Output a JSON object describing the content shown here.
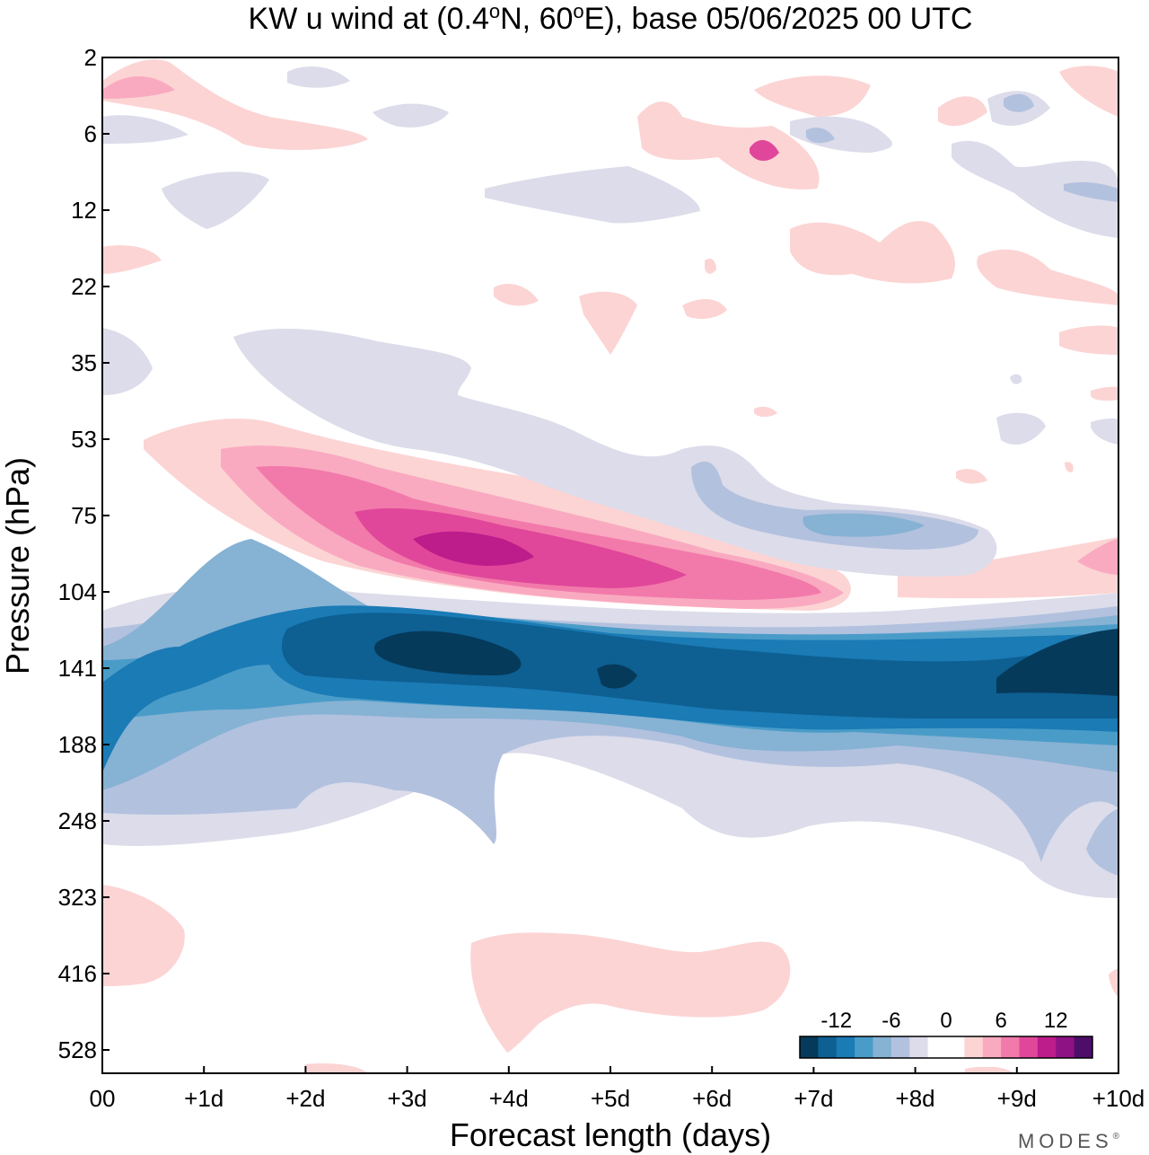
{
  "chart_data": {
    "type": "heatmap",
    "title_parts": [
      "KW u wind at (0.4",
      "o",
      "N, 60",
      "o",
      "E),  base 05/06/2025  00 UTC"
    ],
    "xlabel": "Forecast length (days)",
    "ylabel": "Pressure (hPa)",
    "x_ticks": [
      "00",
      "+1d",
      "+2d",
      "+3d",
      "+4d",
      "+5d",
      "+6d",
      "+7d",
      "+8d",
      "+9d",
      "+10d"
    ],
    "x_range_days": [
      0,
      10
    ],
    "y_ticks": [
      2,
      6,
      12,
      22,
      35,
      53,
      75,
      104,
      141,
      188,
      248,
      323,
      416,
      528
    ],
    "y_scale": "log-pressure (inverted, top = 2 hPa)",
    "colorbar": {
      "tick_labels": [
        "-12",
        "-6",
        "0",
        "6",
        "12"
      ],
      "levels": [
        -16,
        -14,
        -12,
        -10,
        -8,
        -6,
        -4,
        -2,
        0,
        2,
        4,
        6,
        8,
        10,
        12,
        14,
        16
      ],
      "colors": [
        "#063a5a",
        "#0e5f92",
        "#1a7bb5",
        "#4a9cc8",
        "#86b2d4",
        "#b2c1de",
        "#dcdcea",
        "#ffffff",
        "#ffffff",
        "#fcd4d4",
        "#f9aac0",
        "#f27aaa",
        "#e0479a",
        "#bd1c8b",
        "#8e1284",
        "#4d0e6a"
      ],
      "placement": "bottom-right inside plot"
    },
    "features": [
      {
        "name": "westerly jet",
        "sign": "positive",
        "x_days": [
          0.4,
          7.2
        ],
        "pressure_hPa": [
          53,
          110
        ],
        "peak_value": 12,
        "peak_at": {
          "day": 3.5,
          "pressure": 88
        }
      },
      {
        "name": "easterly jet",
        "sign": "negative",
        "x_days": [
          0,
          10
        ],
        "pressure_hPa": [
          110,
          260
        ],
        "peak_value": -14,
        "peak_at": {
          "day": 3.5,
          "pressure": 135
        }
      },
      {
        "name": "weak easterlies",
        "sign": "negative",
        "x_days": [
          1.3,
          9.0
        ],
        "pressure_hPa": [
          30,
          100
        ],
        "peak_value": -6
      },
      {
        "name": "lower tropospheric westerlies",
        "sign": "positive",
        "x_days": [
          3.6,
          6.9
        ],
        "pressure_hPa": [
          360,
          470
        ],
        "peak_value": 2
      }
    ],
    "grid": false,
    "legend": "colorbar, bottom-right"
  },
  "brand": {
    "text": "MODES",
    "mark": "®"
  }
}
